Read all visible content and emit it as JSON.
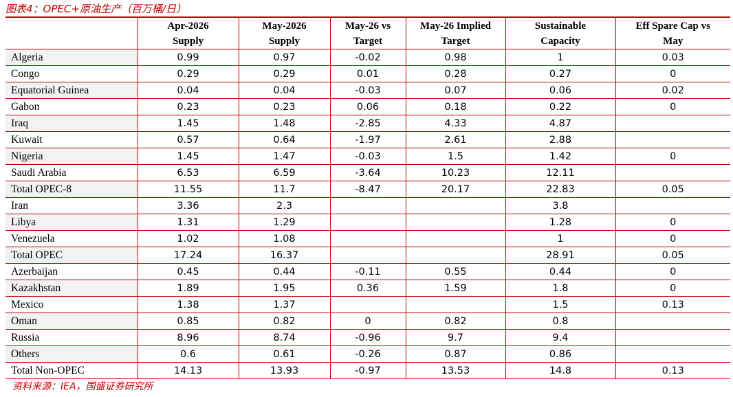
{
  "header": {
    "title": "图表4：OPEC+原油生产（百万桶/日）"
  },
  "table": {
    "columns": [
      "Apr-2026\nSupply",
      "May-2026\nSupply",
      "May-26 vs\nTarget",
      "May-26 Implied\nTarget",
      "Sustainable\nCapacity",
      "Eff Spare Cap vs\nMay"
    ],
    "rows": [
      {
        "label": "Algeria",
        "values": [
          0.99,
          0.97,
          -0.02,
          0.98,
          1,
          0.03
        ]
      },
      {
        "label": "Congo",
        "values": [
          0.29,
          0.29,
          0.01,
          0.28,
          0.27,
          0
        ]
      },
      {
        "label": "Equatorial Guinea",
        "values": [
          0.04,
          0.04,
          -0.03,
          0.07,
          0.06,
          0.02
        ]
      },
      {
        "label": "Gabon",
        "values": [
          0.23,
          0.23,
          0.06,
          0.18,
          0.22,
          0
        ]
      },
      {
        "label": "Iraq",
        "values": [
          1.45,
          1.48,
          -2.85,
          4.33,
          4.87,
          null
        ]
      },
      {
        "label": "Kuwait",
        "values": [
          0.57,
          0.64,
          -1.97,
          2.61,
          2.88,
          null
        ]
      },
      {
        "label": "Nigeria",
        "values": [
          1.45,
          1.47,
          -0.03,
          1.5,
          1.42,
          0
        ]
      },
      {
        "label": "Saudi Arabia",
        "values": [
          6.53,
          6.59,
          -3.64,
          10.23,
          12.11,
          null
        ]
      },
      {
        "label": "Total OPEC-8",
        "values": [
          11.55,
          11.7,
          -8.47,
          20.17,
          22.83,
          0.05
        ]
      },
      {
        "label": "Iran",
        "values": [
          3.36,
          2.3,
          null,
          null,
          3.8,
          null
        ]
      },
      {
        "label": "Libya",
        "values": [
          1.31,
          1.29,
          null,
          null,
          1.28,
          0
        ]
      },
      {
        "label": "Venezuela",
        "values": [
          1.02,
          1.08,
          null,
          null,
          1,
          0
        ]
      },
      {
        "label": "Total OPEC",
        "values": [
          17.24,
          16.37,
          null,
          null,
          28.91,
          0.05
        ]
      },
      {
        "label": "Azerbaijan",
        "values": [
          0.45,
          0.44,
          -0.11,
          0.55,
          0.44,
          0
        ]
      },
      {
        "label": "Kazakhstan",
        "values": [
          1.89,
          1.95,
          0.36,
          1.59,
          1.8,
          0
        ]
      },
      {
        "label": "Mexico",
        "values": [
          1.38,
          1.37,
          null,
          null,
          1.5,
          0.13
        ]
      },
      {
        "label": "Oman",
        "values": [
          0.85,
          0.82,
          0,
          0.82,
          0.8,
          null
        ]
      },
      {
        "label": "Russia",
        "values": [
          8.96,
          8.74,
          -0.96,
          9.7,
          9.4,
          null
        ]
      },
      {
        "label": "Others",
        "values": [
          0.6,
          0.61,
          -0.26,
          0.87,
          0.86,
          null
        ]
      },
      {
        "label": "Total Non-OPEC",
        "values": [
          14.13,
          13.93,
          -0.97,
          13.53,
          14.8,
          0.13
        ]
      }
    ]
  },
  "footer": {
    "source": "资料来源：IEA，国盛证券研究所"
  }
}
